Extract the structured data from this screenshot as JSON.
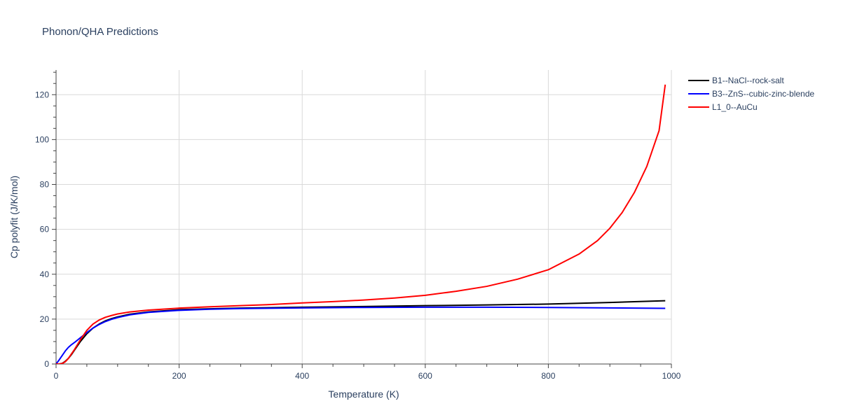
{
  "chart_data": {
    "type": "line",
    "title": "Phonon/QHA Predictions",
    "xlabel": "Temperature (K)",
    "ylabel": "Cp polyfit (J/K/mol)",
    "xlim": [
      0,
      1000
    ],
    "ylim": [
      0,
      131
    ],
    "xticks": [
      0,
      200,
      400,
      600,
      800,
      1000
    ],
    "yticks": [
      0,
      20,
      40,
      60,
      80,
      100,
      120
    ],
    "grid": true,
    "legend_position": "top-right",
    "series": [
      {
        "name": "B1--NaCl--rock-salt",
        "color": "#000000",
        "x": [
          0,
          5,
          10,
          15,
          20,
          25,
          30,
          40,
          50,
          60,
          70,
          80,
          90,
          100,
          120,
          150,
          200,
          250,
          300,
          400,
          500,
          600,
          700,
          800,
          900,
          990
        ],
        "y": [
          0,
          0,
          0.3,
          1.2,
          2.5,
          4.2,
          6.2,
          10.2,
          13.5,
          16.0,
          17.8,
          19.2,
          20.2,
          21.0,
          22.2,
          23.2,
          24.2,
          24.6,
          24.9,
          25.3,
          25.6,
          26.0,
          26.3,
          26.7,
          27.4,
          28.2
        ]
      },
      {
        "name": "B3--ZnS--cubic-zinc-blende",
        "color": "#0000ff",
        "x": [
          0,
          5,
          10,
          15,
          20,
          25,
          30,
          40,
          50,
          60,
          70,
          80,
          90,
          100,
          120,
          150,
          200,
          250,
          300,
          400,
          500,
          600,
          700,
          800,
          900,
          990
        ],
        "y": [
          0,
          1.8,
          3.8,
          5.8,
          7.4,
          8.6,
          9.6,
          11.8,
          14.0,
          16.0,
          17.6,
          18.9,
          19.9,
          20.7,
          21.9,
          23.0,
          23.9,
          24.4,
          24.7,
          25.0,
          25.2,
          25.3,
          25.3,
          25.2,
          25.0,
          24.8
        ]
      },
      {
        "name": "L1_0--AuCu",
        "color": "#ff0000",
        "x": [
          0,
          5,
          10,
          15,
          20,
          30,
          40,
          50,
          60,
          70,
          80,
          90,
          100,
          120,
          150,
          200,
          250,
          300,
          350,
          400,
          450,
          500,
          550,
          600,
          650,
          700,
          750,
          800,
          850,
          880,
          900,
          920,
          940,
          960,
          980,
          990
        ],
        "y": [
          0,
          0,
          0.2,
          1.0,
          2.5,
          6.5,
          11.0,
          15.0,
          17.8,
          19.6,
          20.8,
          21.6,
          22.3,
          23.2,
          24.0,
          24.9,
          25.5,
          26.0,
          26.5,
          27.2,
          27.8,
          28.5,
          29.4,
          30.6,
          32.4,
          34.6,
          37.8,
          42.0,
          49.0,
          55.0,
          60.5,
          67.5,
          76.5,
          88.0,
          104.0,
          124.5
        ]
      }
    ]
  }
}
